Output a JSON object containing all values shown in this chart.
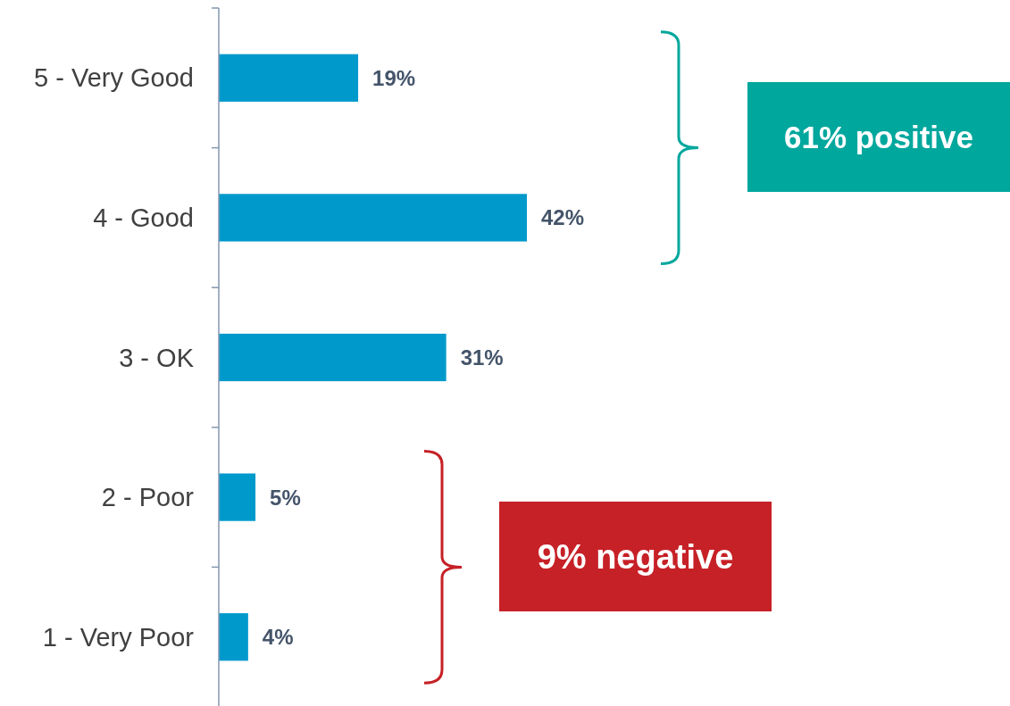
{
  "chart_data": {
    "type": "bar",
    "orientation": "horizontal",
    "categories": [
      "5 - Very Good",
      "4 - Good",
      "3 - OK",
      "2 - Poor",
      "1 - Very Poor"
    ],
    "values": [
      19,
      42,
      31,
      5,
      4
    ],
    "color": "#0099cc",
    "data_labels": true,
    "value_labels": [
      "19%",
      "42%",
      "31%",
      "5%",
      "4%"
    ],
    "tick_labels": "y",
    "annotations": [
      "61% positive",
      "9% negative"
    ]
  }
}
